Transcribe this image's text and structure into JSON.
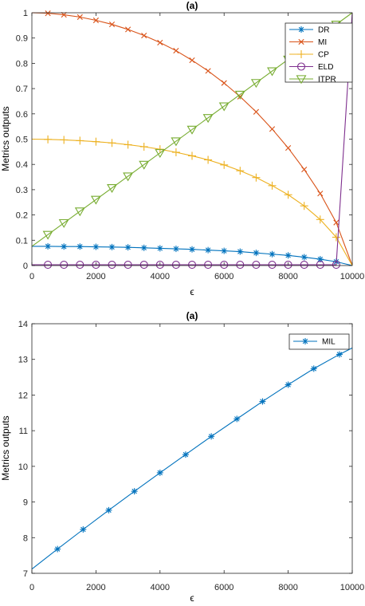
{
  "chart_data": [
    {
      "type": "line",
      "title": "(a)",
      "xlabel": "ϵ",
      "ylabel": "Metrics outputs",
      "xlim": [
        0,
        10000
      ],
      "ylim": [
        0,
        1
      ],
      "xticks": [
        "0",
        "2000",
        "4000",
        "6000",
        "8000",
        "10000"
      ],
      "yticks": [
        "0",
        "0.1",
        "0.2",
        "0.3",
        "0.4",
        "0.5",
        "0.6",
        "0.7",
        "0.8",
        "0.9",
        "1"
      ],
      "legend_position": "top-right",
      "series": [
        {
          "name": "DR",
          "color": "#0072BD",
          "marker": "asterisk",
          "x": [
            0,
            500,
            1000,
            1500,
            2000,
            2500,
            3000,
            3500,
            4000,
            4500,
            5000,
            5500,
            6000,
            6500,
            7000,
            7500,
            8000,
            8500,
            9000,
            9500,
            10000
          ],
          "y": [
            0.076,
            0.076,
            0.075,
            0.075,
            0.074,
            0.073,
            0.072,
            0.07,
            0.068,
            0.066,
            0.064,
            0.061,
            0.058,
            0.055,
            0.05,
            0.045,
            0.04,
            0.033,
            0.025,
            0.015,
            0
          ],
          "marker_x": [
            500,
            1000,
            1500,
            2000,
            2500,
            3000,
            3500,
            4000,
            4500,
            5000,
            5500,
            6000,
            6500,
            7000,
            7500,
            8000,
            8500,
            9000,
            9500
          ]
        },
        {
          "name": "MI",
          "color": "#D95319",
          "marker": "x",
          "x": [
            0,
            500,
            1000,
            1500,
            2000,
            2500,
            3000,
            3500,
            4000,
            4500,
            5000,
            5500,
            6000,
            6500,
            7000,
            7500,
            8000,
            8500,
            9000,
            9500,
            10000
          ],
          "y": [
            1.0,
            0.998,
            0.992,
            0.983,
            0.97,
            0.954,
            0.934,
            0.91,
            0.882,
            0.85,
            0.812,
            0.77,
            0.722,
            0.668,
            0.608,
            0.54,
            0.465,
            0.38,
            0.285,
            0.17,
            0
          ],
          "marker_x": [
            500,
            1000,
            1500,
            2000,
            2500,
            3000,
            3500,
            4000,
            4500,
            5000,
            5500,
            6000,
            6500,
            7000,
            7500,
            8000,
            8500,
            9000,
            9500
          ]
        },
        {
          "name": "CP",
          "color": "#EDB120",
          "marker": "plus",
          "x": [
            0,
            500,
            1000,
            1500,
            2000,
            2500,
            3000,
            3500,
            4000,
            4500,
            5000,
            5500,
            6000,
            6500,
            7000,
            7500,
            8000,
            8500,
            9000,
            9500,
            10000
          ],
          "y": [
            0.5,
            0.499,
            0.497,
            0.494,
            0.49,
            0.485,
            0.478,
            0.47,
            0.46,
            0.448,
            0.434,
            0.418,
            0.398,
            0.375,
            0.348,
            0.316,
            0.28,
            0.236,
            0.182,
            0.112,
            0
          ],
          "marker_x": [
            500,
            1000,
            1500,
            2000,
            2500,
            3000,
            3500,
            4000,
            4500,
            5000,
            5500,
            6000,
            6500,
            7000,
            7500,
            8000,
            8500,
            9000,
            9500
          ]
        },
        {
          "name": "ELD",
          "color": "#7E2F8E",
          "marker": "circle",
          "x": [
            0,
            500,
            1000,
            1500,
            2000,
            2500,
            3000,
            3500,
            4000,
            4500,
            5000,
            5500,
            6000,
            6500,
            7000,
            7500,
            8000,
            8500,
            9000,
            9500,
            10000
          ],
          "y": [
            0.003,
            0.003,
            0.003,
            0.003,
            0.003,
            0.003,
            0.003,
            0.003,
            0.003,
            0.003,
            0.003,
            0.003,
            0.003,
            0.003,
            0.003,
            0.003,
            0.003,
            0.003,
            0.003,
            0.003,
            1.0
          ],
          "marker_x": [
            500,
            1000,
            1500,
            2000,
            2500,
            3000,
            3500,
            4000,
            4500,
            5000,
            5500,
            6000,
            6500,
            7000,
            7500,
            8000,
            8500,
            9000,
            9500
          ]
        },
        {
          "name": "ITPR",
          "color": "#77AC30",
          "marker": "triangle-down",
          "x": [
            0,
            10000
          ],
          "y": [
            0.076,
            1.0
          ],
          "marker_x": [
            500,
            1000,
            1500,
            2000,
            2500,
            3000,
            3500,
            4000,
            4500,
            5000,
            5500,
            6000,
            6500,
            7000,
            7500,
            8000,
            8500,
            9000,
            9500
          ]
        }
      ]
    },
    {
      "type": "line",
      "title": "(a)",
      "xlabel": "ϵ",
      "ylabel": "Metrics outputs",
      "xlim": [
        0,
        10000
      ],
      "ylim": [
        7,
        14
      ],
      "xticks": [
        "0",
        "2000",
        "4000",
        "6000",
        "8000",
        "10000"
      ],
      "yticks": [
        "7",
        "8",
        "9",
        "10",
        "11",
        "12",
        "13",
        "14"
      ],
      "legend_position": "top-right",
      "series": [
        {
          "name": "MIL",
          "color": "#0072BD",
          "marker": "asterisk",
          "x": [
            0,
            800,
            1600,
            2400,
            3200,
            4000,
            4800,
            5600,
            6400,
            7200,
            8000,
            8800,
            9600,
            10000
          ],
          "y": [
            7.12,
            7.68,
            8.23,
            8.77,
            9.3,
            9.82,
            10.33,
            10.84,
            11.33,
            11.82,
            12.29,
            12.74,
            13.14,
            13.32
          ],
          "marker_x": [
            800,
            1600,
            2400,
            3200,
            4000,
            4800,
            5600,
            6400,
            7200,
            8000,
            8800,
            9600
          ]
        }
      ]
    }
  ]
}
